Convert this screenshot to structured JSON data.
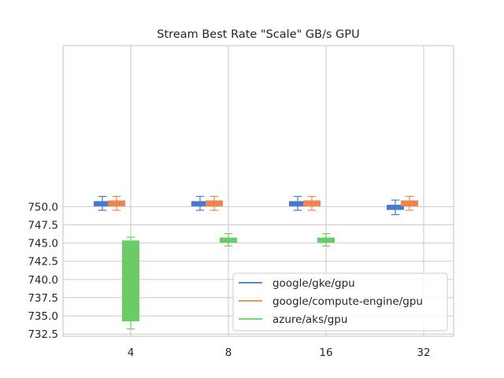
{
  "chart_data": {
    "type": "box",
    "title": "Stream Best Rate \"Scale\" GB/s GPU",
    "xlabel": "",
    "ylabel": "",
    "categories": [
      "4",
      "8",
      "16",
      "32"
    ],
    "ylim": [
      732.2,
      772.1
    ],
    "yticks": [
      "732.5",
      "735.0",
      "737.5",
      "740.0",
      "742.5",
      "745.0",
      "747.5",
      "750.0"
    ],
    "ytick_values": [
      732.5,
      735.0,
      737.5,
      740.0,
      742.5,
      745.0,
      747.5,
      750.0
    ],
    "grid": true,
    "legend_position": "lower-right",
    "series": [
      {
        "name": "google/gke/gpu",
        "color": "#4878d0",
        "boxes": [
          {
            "category": "4",
            "whisker_low": 749.5,
            "q1": 750.1,
            "median": 750.3,
            "q3": 750.7,
            "whisker_high": 751.4
          },
          {
            "category": "8",
            "whisker_low": 749.5,
            "q1": 750.1,
            "median": 750.3,
            "q3": 750.7,
            "whisker_high": 751.4
          },
          {
            "category": "16",
            "whisker_low": 749.5,
            "q1": 750.1,
            "median": 750.3,
            "q3": 750.7,
            "whisker_high": 751.4
          },
          {
            "category": "32",
            "whisker_low": 748.9,
            "q1": 749.6,
            "median": 749.9,
            "q3": 750.2,
            "whisker_high": 750.9
          }
        ]
      },
      {
        "name": "google/compute-engine/gpu",
        "color": "#ee854a",
        "boxes": [
          {
            "category": "4",
            "whisker_low": 749.5,
            "q1": 750.1,
            "median": 750.5,
            "q3": 750.8,
            "whisker_high": 751.4
          },
          {
            "category": "8",
            "whisker_low": 749.5,
            "q1": 750.1,
            "median": 750.5,
            "q3": 750.8,
            "whisker_high": 751.4
          },
          {
            "category": "16",
            "whisker_low": 749.5,
            "q1": 750.1,
            "median": 750.5,
            "q3": 750.8,
            "whisker_high": 751.4
          },
          {
            "category": "32",
            "whisker_low": 749.5,
            "q1": 750.1,
            "median": 750.5,
            "q3": 750.8,
            "whisker_high": 751.4
          }
        ]
      },
      {
        "name": "azure/aks/gpu",
        "color": "#6acc64",
        "boxes": [
          {
            "category": "4",
            "whisker_low": 733.2,
            "q1": 734.3,
            "median": 739.0,
            "q3": 745.3,
            "whisker_high": 745.8
          },
          {
            "category": "8",
            "whisker_low": 744.6,
            "q1": 745.1,
            "median": 745.4,
            "q3": 745.7,
            "whisker_high": 746.3
          },
          {
            "category": "16",
            "whisker_low": 744.6,
            "q1": 745.1,
            "median": 745.4,
            "q3": 745.7,
            "whisker_high": 746.3
          },
          {
            "category": "32",
            "whisker_low": null,
            "q1": null,
            "median": null,
            "q3": null,
            "whisker_high": null
          }
        ]
      }
    ]
  }
}
